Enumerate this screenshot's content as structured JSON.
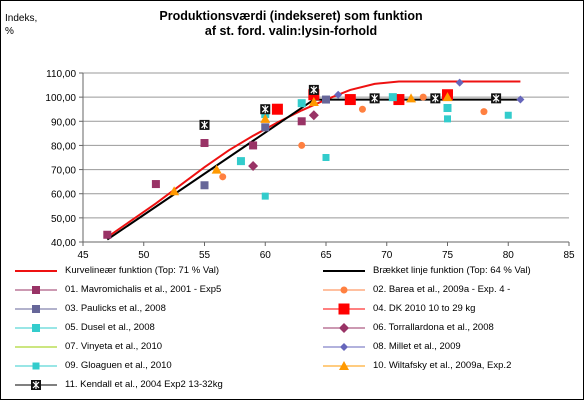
{
  "chart_data": {
    "type": "scatter",
    "title_line1": "Produktionsværdi (indekseret) som funktion",
    "title_line2": "af st. ford. valin:lysin-forhold",
    "ylabel_line1": "Indeks,",
    "ylabel_line2": "%",
    "xlim": [
      45,
      85
    ],
    "ylim": [
      40,
      110
    ],
    "x_ticks": [
      "45",
      "50",
      "55",
      "60",
      "65",
      "70",
      "75",
      "80",
      "85"
    ],
    "y_ticks": [
      "40,00",
      "50,00",
      "60,00",
      "70,00",
      "80,00",
      "90,00",
      "100,00",
      "110,00"
    ],
    "grid": "horizontal",
    "legend_placement": "bottom",
    "lines": [
      {
        "name": "Kurvelineær funktion  (Top: 71 % Val)",
        "color": "#ee1111",
        "points": [
          [
            47,
            42
          ],
          [
            49,
            49
          ],
          [
            51,
            56
          ],
          [
            53,
            63.5
          ],
          [
            55,
            71
          ],
          [
            57,
            78
          ],
          [
            59,
            84
          ],
          [
            61,
            89.5
          ],
          [
            63,
            94.5
          ],
          [
            65,
            99
          ],
          [
            67,
            103
          ],
          [
            69,
            105.5
          ],
          [
            71,
            106.5
          ],
          [
            73,
            106.5
          ],
          [
            75,
            106.5
          ],
          [
            77,
            106.5
          ],
          [
            79,
            106.5
          ],
          [
            81,
            106.5
          ]
        ]
      },
      {
        "name": "Brækket linje funktion  (Top: 64 % Val)",
        "color": "#000000",
        "points": [
          [
            47,
            41
          ],
          [
            64,
            99
          ],
          [
            81,
            99
          ]
        ]
      }
    ],
    "series": [
      {
        "name": "01. Mavromichalis et al., 2001 - Exp5",
        "color": "#993366",
        "marker": "square",
        "x": [
          47,
          51,
          55,
          59,
          63,
          64
        ],
        "y": [
          43,
          64,
          81,
          80,
          90,
          103
        ]
      },
      {
        "name": "02. Barea et al., 2009a - Exp. 4 -",
        "color": "#ff8040",
        "marker": "circle",
        "x": [
          56.5,
          63,
          68,
          73,
          78
        ],
        "y": [
          67,
          80,
          95,
          100,
          94
        ]
      },
      {
        "name": "03. Paulicks et al., 2008",
        "color": "#666699",
        "marker": "square",
        "x": [
          55,
          60,
          65
        ],
        "y": [
          63.5,
          87.5,
          99
        ]
      },
      {
        "name": "04. DK 2010 10 to 29 kg",
        "color": "#ff0000",
        "marker": "square-large",
        "x": [
          61,
          64,
          67,
          71,
          75
        ],
        "y": [
          95,
          101,
          99,
          99,
          101
        ]
      },
      {
        "name": "05. Dusel et al., 2008",
        "color": "#33cccc",
        "marker": "square",
        "x": [
          58,
          60,
          63,
          70.5,
          75
        ],
        "y": [
          73.5,
          93,
          97.5,
          100,
          95.5
        ]
      },
      {
        "name": "06. Torrallardona et al., 2008",
        "color": "#993366",
        "marker": "diamond",
        "x": [
          59,
          64
        ],
        "y": [
          71.5,
          92.5
        ]
      },
      {
        "name": "07. Vinyeta et al., 2010",
        "color": "#99cc00",
        "marker": "line-only",
        "x": [],
        "y": []
      },
      {
        "name": "08. Millet et al., 2009",
        "color": "#6666bb",
        "marker": "diamond-small",
        "x": [
          66,
          76,
          81
        ],
        "y": [
          101,
          106,
          99
        ]
      },
      {
        "name": "09. Gloaguen et al., 2010",
        "color": "#33cccc",
        "marker": "square-small",
        "x": [
          60,
          65,
          75,
          80
        ],
        "y": [
          59,
          75,
          91,
          92.5
        ]
      },
      {
        "name": "10. Wiltafsky et al., 2009a, Exp.2",
        "color": "#ff9900",
        "marker": "triangle",
        "x": [
          52.5,
          56,
          60,
          64,
          72,
          75
        ],
        "y": [
          61,
          70,
          91,
          98,
          99.5,
          100
        ]
      },
      {
        "name": "11. Kendall et al., 2004 Exp2 13-32kg",
        "color": "#000000",
        "marker": "asterisk",
        "x": [
          55,
          60,
          64,
          69,
          74,
          79
        ],
        "y": [
          88.5,
          95,
          103,
          99.5,
          99.5,
          99.5
        ]
      }
    ]
  }
}
